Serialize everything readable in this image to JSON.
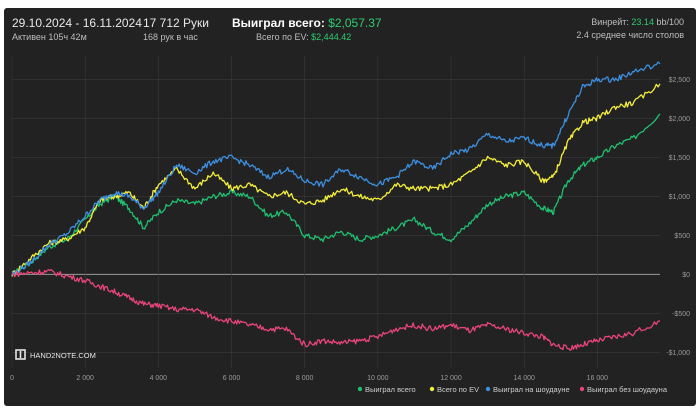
{
  "header": {
    "date_range": "29.10.2024 - 16.11.2024",
    "active": "Активен 105ч 42м",
    "hands": "17 712 Руки",
    "hands_per_hour": "168 рук в час",
    "won_label": "Выиграл всего:",
    "won_value": "$2,057.37",
    "ev_label": "Всего по EV:",
    "ev_value": "$2,444.42",
    "winrate_label": "Винрейт:",
    "winrate_value": "23.14",
    "winrate_suffix": "bb/100",
    "tables": "2.4 среднее число столов"
  },
  "logo_text": "HAND2NOTE.COM",
  "colors": {
    "won": "#1fbf6f",
    "ev": "#f3ee3a",
    "showdown": "#3d8fe0",
    "nonshowdown": "#e8457a",
    "grid": "#3a3a3a",
    "zero": "#9a9a9a"
  },
  "chart_data": {
    "type": "line",
    "title": "",
    "xlabel": "",
    "ylabel": "",
    "xlim": [
      0,
      17712
    ],
    "ylim": [
      -1200,
      2800
    ],
    "x_ticks": [
      0,
      2000,
      4000,
      6000,
      8000,
      10000,
      12000,
      14000,
      16000
    ],
    "x_tick_labels": [
      "0",
      "2 000",
      "4 000",
      "6 000",
      "8 000",
      "10 000",
      "12 000",
      "14 000",
      "16 000"
    ],
    "y_ticks": [
      2500,
      2000,
      1500,
      1000,
      500,
      0,
      -500,
      -1000
    ],
    "y_tick_labels": [
      "$2,500",
      "$2,000",
      "$1,500",
      "$1,000",
      "$500",
      "$0",
      "-$500",
      "-$1,000"
    ],
    "legend_position": "bottom-right",
    "series": [
      {
        "name": "Выиграл всего",
        "color": "#1fbf6f",
        "x": [
          0,
          500,
          1000,
          1500,
          2000,
          2400,
          2800,
          3200,
          3600,
          4000,
          4500,
          5000,
          5500,
          6000,
          6500,
          7000,
          7500,
          8000,
          8500,
          9000,
          9500,
          10000,
          10500,
          11000,
          11500,
          12000,
          12500,
          13000,
          13500,
          14000,
          14500,
          14800,
          15200,
          15600,
          16000,
          16500,
          17000,
          17712
        ],
        "y": [
          0,
          150,
          350,
          450,
          700,
          900,
          1000,
          850,
          600,
          800,
          950,
          900,
          1000,
          1050,
          1000,
          750,
          800,
          500,
          450,
          550,
          450,
          500,
          600,
          700,
          550,
          450,
          650,
          900,
          1000,
          1050,
          850,
          800,
          1200,
          1400,
          1500,
          1650,
          1750,
          2057
        ]
      },
      {
        "name": "Всего по EV",
        "color": "#f3ee3a",
        "x": [
          0,
          500,
          1000,
          1500,
          2000,
          2400,
          2800,
          3200,
          3600,
          4000,
          4500,
          5000,
          5500,
          6000,
          6500,
          7000,
          7500,
          8000,
          8500,
          9000,
          9500,
          10000,
          10500,
          11000,
          11500,
          12000,
          12500,
          13000,
          13500,
          14000,
          14500,
          14800,
          15200,
          15600,
          16000,
          16500,
          17000,
          17712
        ],
        "y": [
          0,
          200,
          400,
          450,
          600,
          950,
          1000,
          1050,
          850,
          1150,
          1350,
          1100,
          1300,
          1100,
          1150,
          1000,
          1050,
          900,
          950,
          1100,
          1000,
          950,
          1150,
          1100,
          1100,
          1150,
          1300,
          1500,
          1400,
          1450,
          1200,
          1250,
          1700,
          1950,
          2000,
          2150,
          2200,
          2444
        ]
      },
      {
        "name": "Выиграл на шоудауне",
        "color": "#3d8fe0",
        "x": [
          0,
          500,
          1000,
          1500,
          2000,
          2400,
          2800,
          3200,
          3600,
          4000,
          4500,
          5000,
          5500,
          6000,
          6500,
          7000,
          7500,
          8000,
          8500,
          9000,
          9500,
          10000,
          10500,
          11000,
          11500,
          12000,
          12500,
          13000,
          13500,
          14000,
          14500,
          14800,
          15200,
          15600,
          16000,
          16500,
          17000,
          17712
        ],
        "y": [
          0,
          150,
          380,
          520,
          750,
          950,
          1050,
          1000,
          850,
          1050,
          1400,
          1300,
          1450,
          1500,
          1400,
          1250,
          1350,
          1200,
          1150,
          1350,
          1250,
          1150,
          1250,
          1450,
          1350,
          1550,
          1600,
          1800,
          1700,
          1750,
          1650,
          1650,
          2050,
          2400,
          2500,
          2500,
          2600,
          2700
        ]
      },
      {
        "name": "Выиграл без шоудауна",
        "color": "#e8457a",
        "x": [
          0,
          500,
          1000,
          1500,
          2000,
          2400,
          2800,
          3200,
          3600,
          4000,
          4500,
          5000,
          5500,
          6000,
          6500,
          7000,
          7500,
          8000,
          8500,
          9000,
          9500,
          10000,
          10500,
          11000,
          11500,
          12000,
          12500,
          13000,
          13500,
          14000,
          14500,
          14800,
          15200,
          15600,
          16000,
          16500,
          17000,
          17712
        ],
        "y": [
          0,
          20,
          40,
          -20,
          -80,
          -150,
          -220,
          -300,
          -380,
          -400,
          -450,
          -450,
          -550,
          -600,
          -650,
          -700,
          -700,
          -900,
          -850,
          -880,
          -850,
          -800,
          -700,
          -650,
          -700,
          -650,
          -720,
          -650,
          -700,
          -750,
          -800,
          -900,
          -950,
          -900,
          -850,
          -800,
          -750,
          -600
        ]
      }
    ]
  }
}
